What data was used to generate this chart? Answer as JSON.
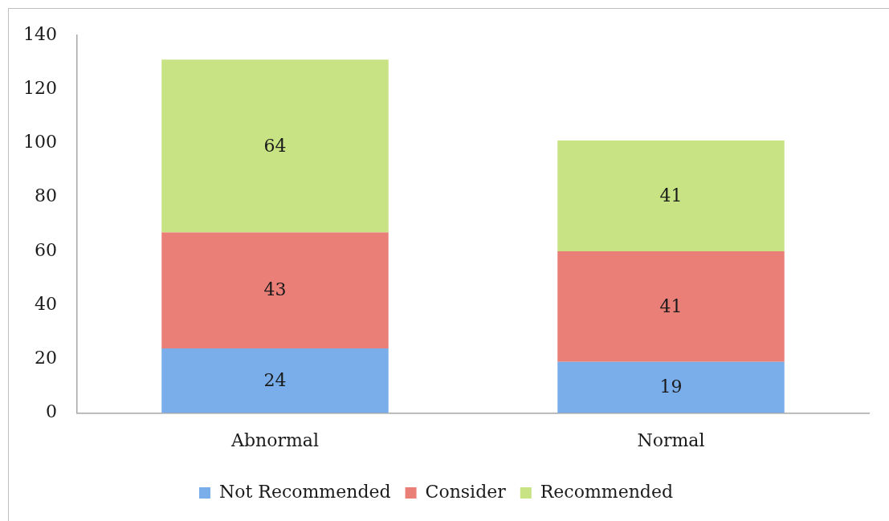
{
  "chart_data": {
    "type": "bar",
    "stacked": true,
    "categories": [
      "Abnormal",
      "Normal"
    ],
    "series": [
      {
        "name": "Not Recommended",
        "color": "#7aaeea",
        "values": [
          24,
          19
        ]
      },
      {
        "name": "Consider",
        "color": "#ea7f77",
        "values": [
          43,
          41
        ]
      },
      {
        "name": "Recommended",
        "color": "#c8e383",
        "values": [
          64,
          41
        ]
      }
    ],
    "ylim": [
      0,
      140
    ],
    "yticks": [
      0,
      20,
      40,
      60,
      80,
      100,
      120,
      140
    ],
    "grid": false,
    "legend": "bottom",
    "data_labels": true
  }
}
